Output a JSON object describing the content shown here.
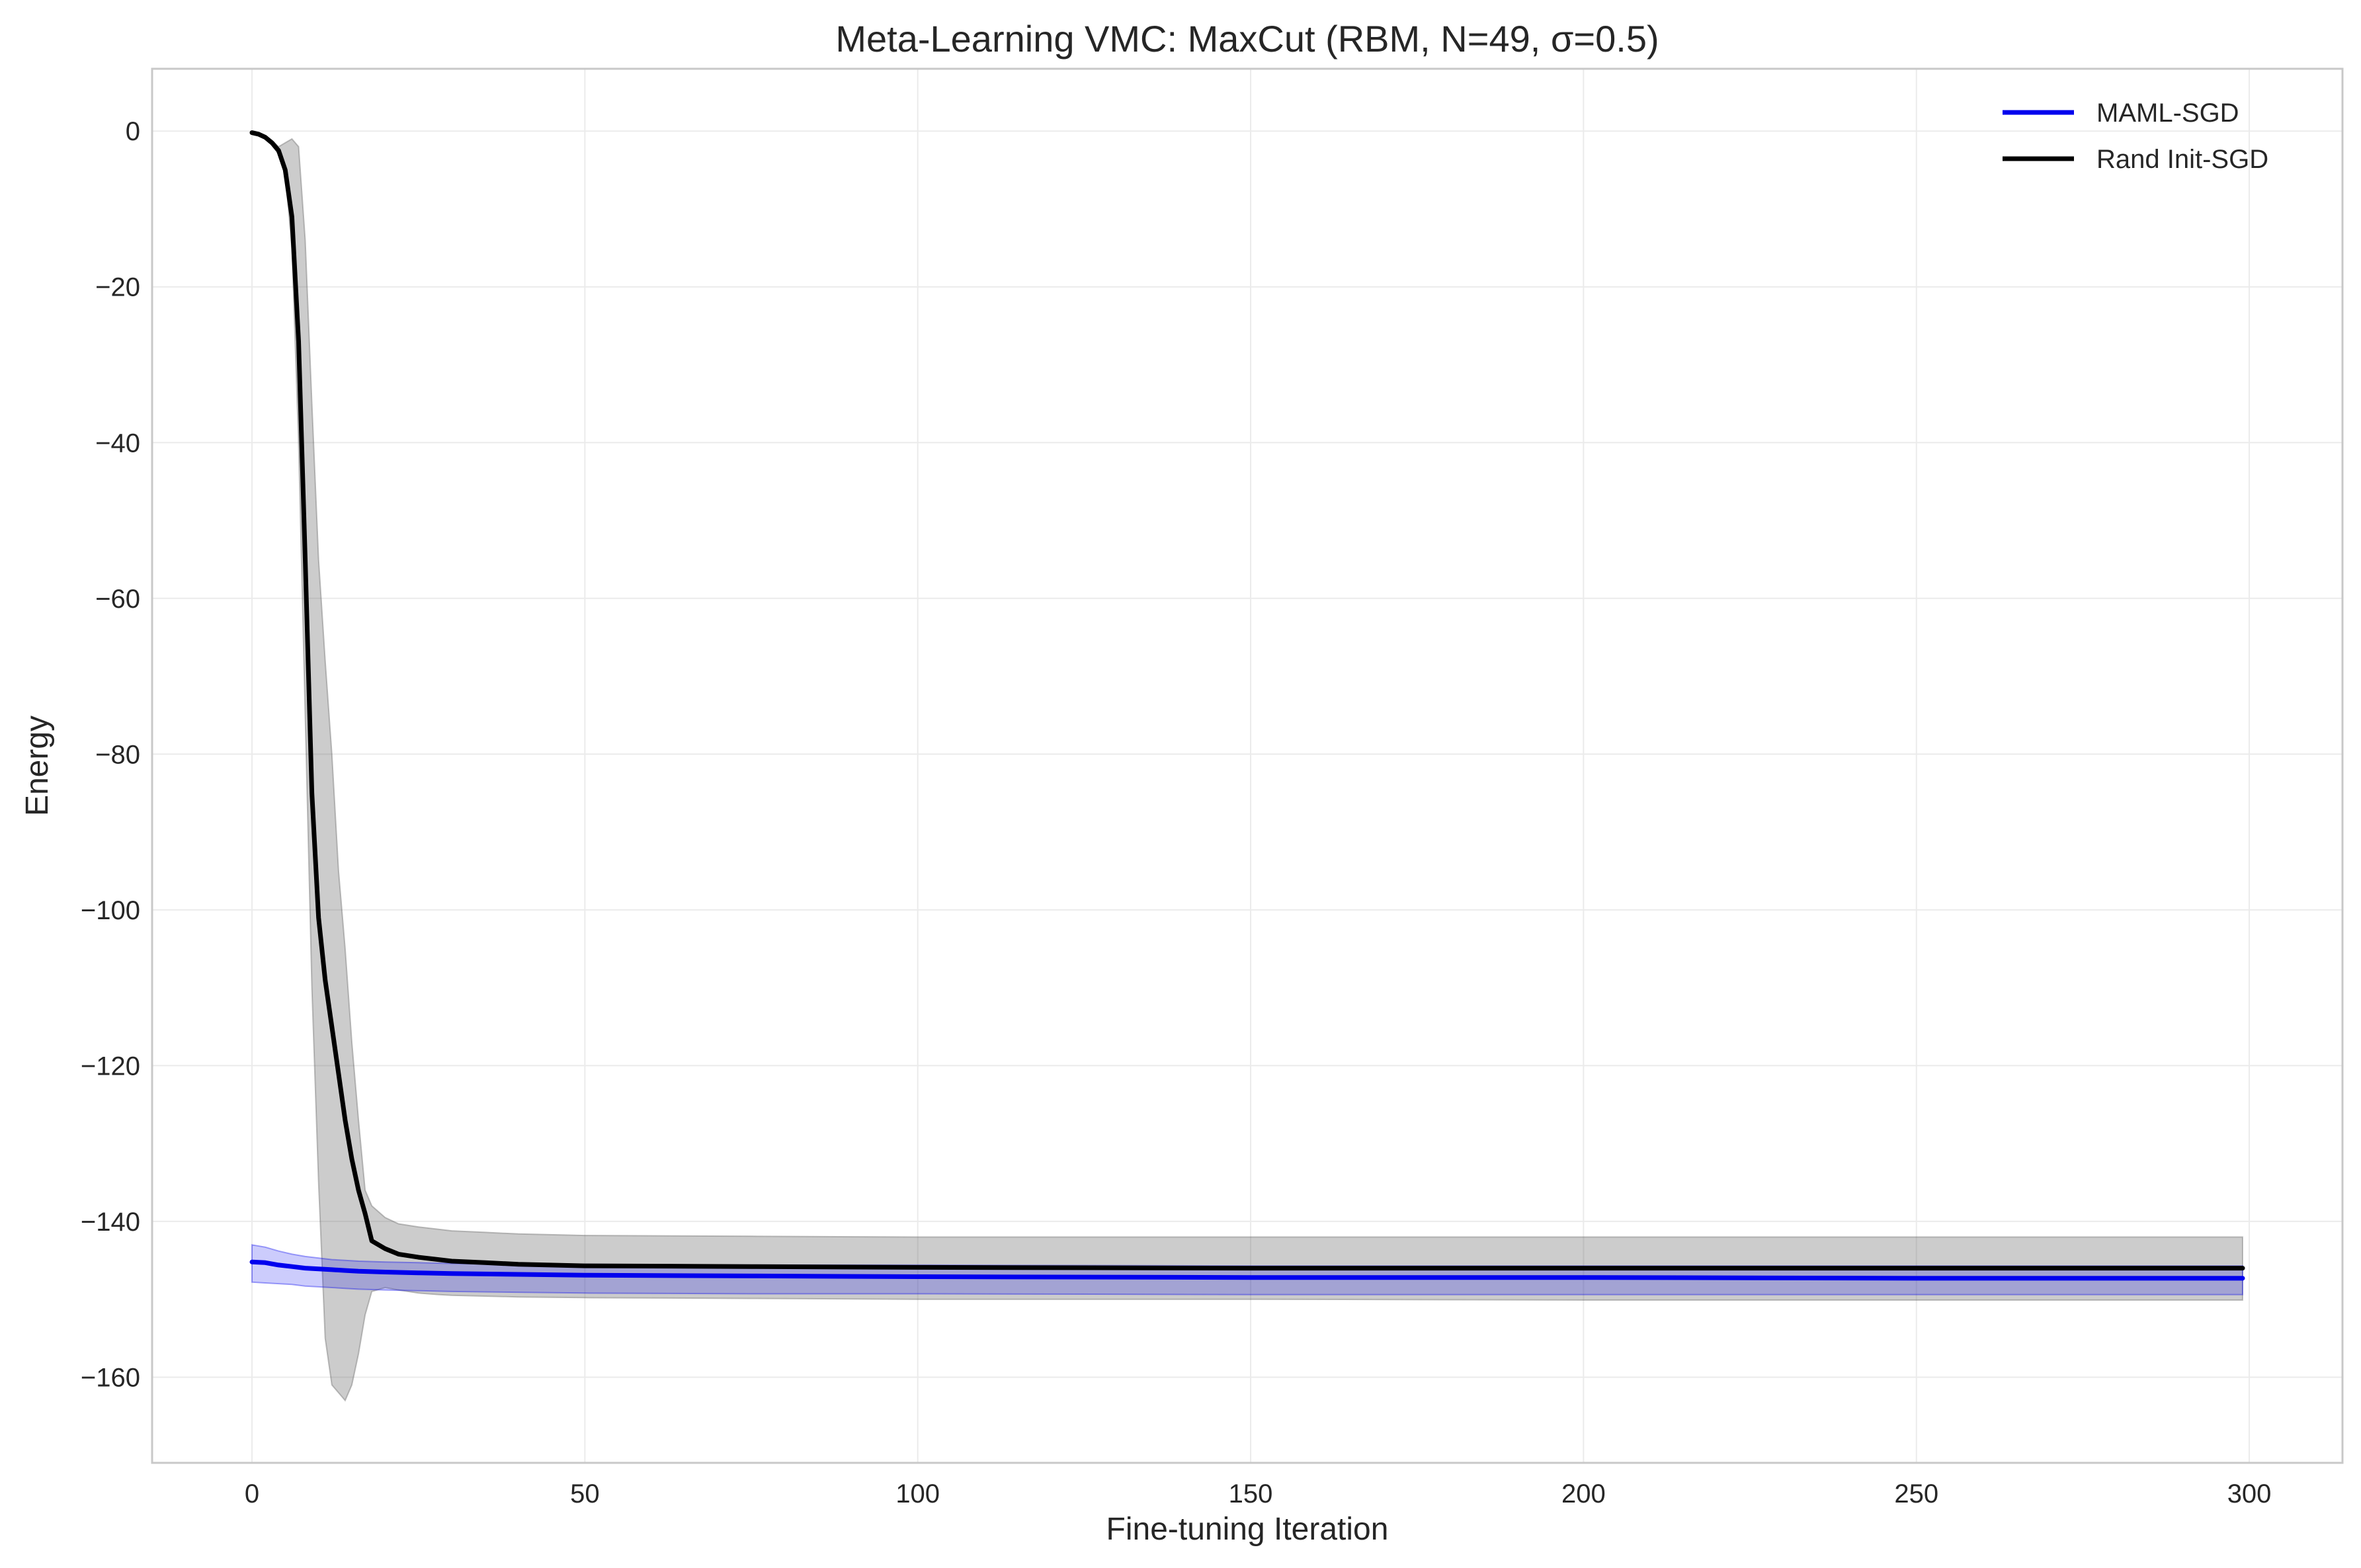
{
  "chart_data": {
    "type": "line",
    "title": "Meta-Learning VMC: MaxCut (RBM, N=49, σ=0.5)",
    "xlabel": "Fine-tuning Iteration",
    "ylabel": "Energy",
    "xlim": [
      -15,
      314
    ],
    "ylim": [
      -171,
      8
    ],
    "xticks": [
      0,
      50,
      100,
      150,
      200,
      250,
      300
    ],
    "yticks": [
      0,
      -20,
      -40,
      -60,
      -80,
      -100,
      -120,
      -140,
      -160
    ],
    "xtick_labels": [
      "0",
      "50",
      "100",
      "150",
      "200",
      "250",
      "300"
    ],
    "ytick_labels": [
      "0",
      "−20",
      "−40",
      "−60",
      "−80",
      "−100",
      "−120",
      "−140",
      "−160"
    ],
    "grid": true,
    "legend_position": "top-right",
    "series": [
      {
        "name": "MAML-SGD",
        "color": "#0000ee",
        "band_color": "#0000ee",
        "x": [
          0,
          2,
          4,
          6,
          8,
          10,
          12,
          14,
          16,
          20,
          25,
          30,
          40,
          50,
          75,
          100,
          150,
          200,
          250,
          299
        ],
        "y": [
          -145.2,
          -145.3,
          -145.6,
          -145.8,
          -146.0,
          -146.1,
          -146.2,
          -146.3,
          -146.4,
          -146.5,
          -146.6,
          -146.7,
          -146.8,
          -146.9,
          -147.0,
          -147.1,
          -147.2,
          -147.2,
          -147.3,
          -147.3
        ],
        "lower": [
          -147.8,
          -147.9,
          -148.0,
          -148.1,
          -148.3,
          -148.4,
          -148.5,
          -148.6,
          -148.7,
          -148.8,
          -148.9,
          -149.0,
          -149.1,
          -149.2,
          -149.3,
          -149.3,
          -149.4,
          -149.4,
          -149.4,
          -149.4
        ],
        "upper": [
          -143.0,
          -143.3,
          -143.8,
          -144.2,
          -144.5,
          -144.7,
          -144.9,
          -145.0,
          -145.1,
          -145.2,
          -145.3,
          -145.4,
          -145.5,
          -145.5,
          -145.6,
          -145.6,
          -145.7,
          -145.7,
          -145.7,
          -145.7
        ]
      },
      {
        "name": "Rand Init-SGD",
        "color": "#000000",
        "band_color": "#555555",
        "x": [
          0,
          1,
          2,
          3,
          4,
          5,
          6,
          7,
          8,
          9,
          10,
          11,
          12,
          13,
          14,
          15,
          16,
          17,
          18,
          20,
          22,
          25,
          28,
          30,
          35,
          40,
          50,
          75,
          100,
          150,
          200,
          250,
          299
        ],
        "y": [
          -0.2,
          -0.4,
          -0.8,
          -1.5,
          -2.5,
          -5.0,
          -11.0,
          -27.0,
          -55.0,
          -85.0,
          -101.0,
          -109.0,
          -115.0,
          -121.0,
          -127.0,
          -132.0,
          -136.0,
          -139.0,
          -142.5,
          -143.5,
          -144.2,
          -144.6,
          -144.9,
          -145.1,
          -145.3,
          -145.5,
          -145.7,
          -145.8,
          -145.9,
          -146.0,
          -146.0,
          -146.0,
          -146.0
        ],
        "lower": [
          -0.3,
          -0.5,
          -1.0,
          -1.8,
          -3.0,
          -5.5,
          -15.0,
          -40.0,
          -75.0,
          -110.0,
          -135.0,
          -155.0,
          -161.0,
          -162.0,
          -163.0,
          -161.0,
          -157.0,
          -152.0,
          -149.0,
          -148.5,
          -148.8,
          -149.2,
          -149.4,
          -149.5,
          -149.6,
          -149.7,
          -149.8,
          -149.9,
          -150.0,
          -150.0,
          -150.1,
          -150.1,
          -150.1
        ],
        "upper": [
          -0.1,
          -0.3,
          -0.6,
          -1.2,
          -2.0,
          -1.5,
          -1.0,
          -2.0,
          -14.0,
          -35.0,
          -55.0,
          -68.0,
          -80.0,
          -95.0,
          -105.0,
          -117.0,
          -127.0,
          -136.0,
          -138.0,
          -139.5,
          -140.3,
          -140.7,
          -141.0,
          -141.2,
          -141.4,
          -141.6,
          -141.8,
          -141.9,
          -142.0,
          -142.0,
          -142.0,
          -142.0,
          -142.0
        ]
      }
    ]
  }
}
